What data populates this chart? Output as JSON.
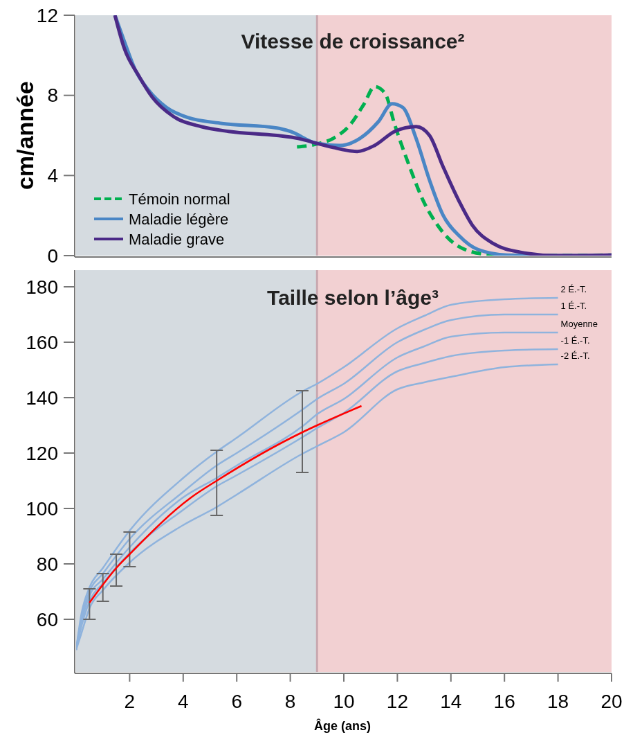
{
  "chart_data": [
    {
      "type": "line",
      "title": "Vitesse de croissance²",
      "ylabel": "cm/année",
      "xlim": [
        0,
        20
      ],
      "ylim": [
        0,
        12
      ],
      "yticks": [
        0,
        4,
        8,
        12
      ],
      "tick_labels": "y",
      "legend": "bottom left",
      "bands": [
        {
          "axis": "x",
          "from": 0,
          "to": 9,
          "color": "#d5dbe0"
        },
        {
          "axis": "x",
          "from": 9,
          "to": 20,
          "color": "#f2d0d2"
        }
      ],
      "ref_lines": [
        {
          "axis": "x",
          "value": 9,
          "color": "#c8a8b0"
        }
      ],
      "series": [
        {
          "name": "Témoin normal",
          "color": "#00b050",
          "line_style": "dashed",
          "x": [
            8.25,
            9,
            9.6,
            10.24,
            10.76,
            11.15,
            11.54,
            11.9,
            12.45,
            12.97,
            13.5,
            14.26,
            15.3,
            16.6,
            20
          ],
          "values": [
            5.43,
            5.57,
            5.85,
            6.54,
            7.58,
            8.44,
            8.1,
            6.54,
            4.46,
            2.73,
            1.52,
            0.48,
            0.07,
            0,
            0.03
          ]
        },
        {
          "name": "Maladie légère",
          "color": "#4a86c5",
          "x": [
            1.45,
            1.8,
            2.2,
            2.7,
            3.37,
            4.15,
            5.45,
            7.5,
            8,
            9,
            9.85,
            10.6,
            11.3,
            11.8,
            12.2,
            12.7,
            13.2,
            13.7,
            14.3,
            15,
            16.1,
            17.9,
            20
          ],
          "values": [
            12,
            10.7,
            9.3,
            8.27,
            7.4,
            6.9,
            6.6,
            6.37,
            6.2,
            5.6,
            5.5,
            5.85,
            6.7,
            7.58,
            7.4,
            5.85,
            3.77,
            2.04,
            1,
            0.31,
            0.03,
            0,
            0.03
          ]
        },
        {
          "name": "Maladie grave",
          "color": "#4b2a87",
          "x": [
            1.45,
            1.8,
            2.33,
            2.85,
            3.63,
            4.67,
            5.7,
            7.5,
            8.3,
            9,
            9.6,
            10.5,
            11.15,
            11.9,
            12.7,
            13.2,
            13.7,
            14.3,
            14.8,
            15.6,
            16.6,
            17.9,
            20
          ],
          "values": [
            12,
            10.35,
            9,
            7.9,
            6.95,
            6.44,
            6.2,
            6,
            5.85,
            5.6,
            5.4,
            5.2,
            5.5,
            6.2,
            6.44,
            6,
            4.46,
            2.73,
            1.52,
            0.59,
            0.17,
            0,
            0.03
          ]
        }
      ]
    },
    {
      "type": "line",
      "title": "Taille selon l’âge³",
      "xlabel": "Âge (ans)",
      "xlim": [
        0,
        20
      ],
      "ylim": [
        41,
        186
      ],
      "xticks": [
        2,
        4,
        6,
        8,
        10,
        12,
        14,
        16,
        18,
        20
      ],
      "yticks": [
        60,
        80,
        100,
        120,
        140,
        160,
        180
      ],
      "bands": [
        {
          "axis": "x",
          "from": 0,
          "to": 9,
          "color": "#d5dbe0"
        },
        {
          "axis": "x",
          "from": 9,
          "to": 20,
          "color": "#f2d0d2"
        }
      ],
      "ref_lines": [
        {
          "axis": "x",
          "value": 9,
          "color": "#c8a8b0"
        }
      ],
      "series": [
        {
          "name": "2 É.-T.",
          "color": "#8fb3dd",
          "x": [
            0,
            0.2,
            0.5,
            1,
            2,
            4,
            5.25,
            6,
            8.5,
            9,
            10,
            12,
            13,
            14,
            16,
            18
          ],
          "values": [
            49,
            62,
            71.5,
            78.5,
            92,
            111,
            120.5,
            125.5,
            142.5,
            145,
            151,
            165,
            169.5,
            173.5,
            175.5,
            176
          ]
        },
        {
          "name": "1 É.-T.",
          "color": "#8fb3dd",
          "x": [
            0,
            0.2,
            0.5,
            1,
            2,
            4,
            5.25,
            6,
            8.5,
            9,
            10,
            12,
            13,
            14,
            16,
            18
          ],
          "values": [
            49,
            60.5,
            70,
            76.5,
            89,
            106,
            115.5,
            120,
            136,
            139.5,
            145,
            160,
            164.5,
            168,
            170,
            170
          ]
        },
        {
          "name": "Moyenne",
          "color": "#8fb3dd",
          "x": [
            0,
            0.2,
            0.5,
            1,
            2,
            4,
            5.25,
            6,
            8.5,
            9,
            10,
            12,
            13,
            14,
            16,
            18
          ],
          "values": [
            49,
            59,
            68.5,
            74.5,
            86,
            104,
            111,
            115.5,
            130,
            134,
            139.5,
            154.5,
            158.5,
            162,
            163.5,
            163.5
          ]
        },
        {
          "name": "-1 É.-T.",
          "color": "#8fb3dd",
          "x": [
            0,
            0.2,
            0.5,
            1,
            2,
            4,
            5.25,
            6,
            8.5,
            9,
            10,
            12,
            13,
            14,
            16,
            18
          ],
          "values": [
            49,
            57.5,
            66.5,
            73,
            84,
            99.5,
            108,
            112,
            126,
            129,
            134.5,
            149.5,
            152.5,
            155,
            157,
            157.5
          ]
        },
        {
          "name": "-2 É.-T.",
          "color": "#8fb3dd",
          "x": [
            0,
            0.2,
            0.5,
            1,
            2,
            4,
            5.25,
            6,
            8.5,
            9,
            10,
            12,
            13,
            14,
            16,
            18
          ],
          "values": [
            49,
            55,
            64,
            70.5,
            80.5,
            94,
            100.5,
            105,
            120,
            122.5,
            127.5,
            143,
            145.5,
            147.5,
            151,
            152
          ]
        },
        {
          "color": "#ff0000",
          "x": [
            0.5,
            1,
            1.5,
            2,
            4.3,
            5.25,
            8.45,
            9,
            10.66
          ],
          "values": [
            66,
            72.5,
            78.5,
            83.5,
            104,
            110,
            127.5,
            130,
            137
          ],
          "errors": [
            [
              60,
              71
            ],
            [
              66.5,
              76.5
            ],
            [
              72,
              83.5
            ],
            [
              79,
              91.5
            ],
            null,
            [
              97.5,
              121
            ],
            [
              113,
              142.5
            ],
            null,
            null
          ]
        }
      ]
    }
  ]
}
